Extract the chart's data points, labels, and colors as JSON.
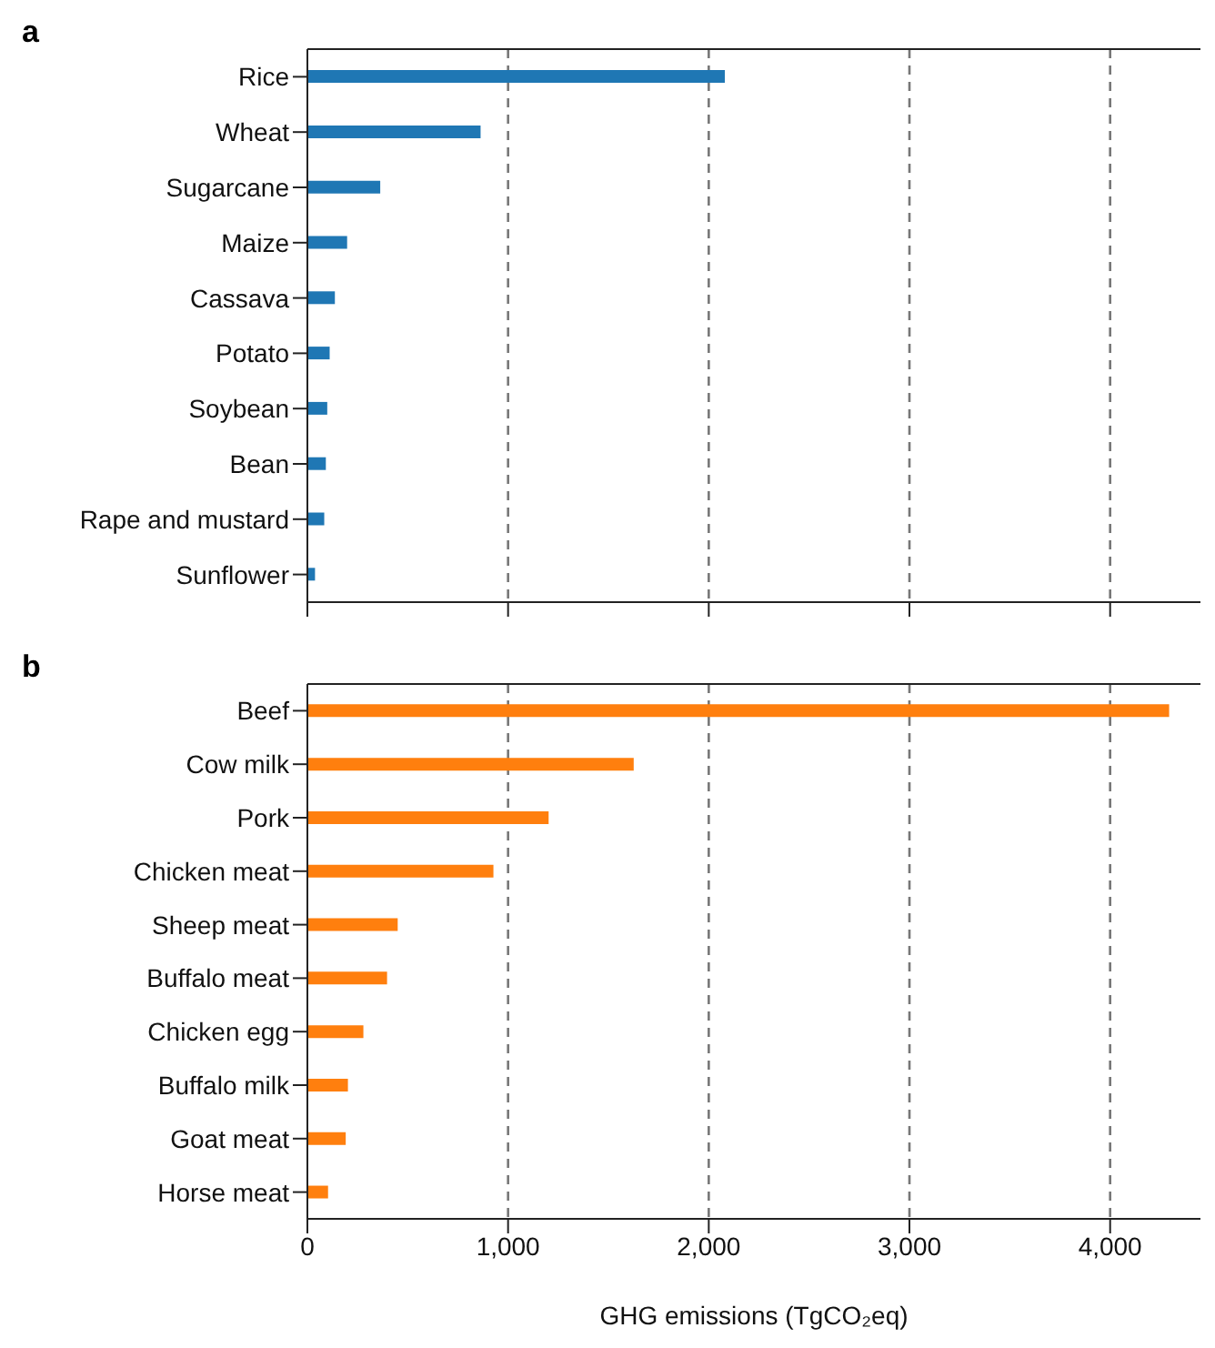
{
  "chart_data": [
    {
      "type": "bar",
      "title": "a",
      "orientation": "horizontal",
      "categories": [
        "Rice",
        "Wheat",
        "Sugarcane",
        "Maize",
        "Cassava",
        "Potato",
        "Soybean",
        "Bean",
        "Rape and mustard",
        "Sunflower"
      ],
      "values": [
        2080,
        863,
        363,
        198,
        137,
        111,
        99,
        92,
        84,
        38
      ],
      "color": "#1f77b4",
      "xlim": [
        0,
        4450
      ],
      "xticks": [
        0,
        1000,
        2000,
        3000,
        4000
      ],
      "grid": "x",
      "tick_labels": "y"
    },
    {
      "type": "bar",
      "title": "b",
      "orientation": "horizontal",
      "categories": [
        "Beef",
        "Cow milk",
        "Pork",
        "Chicken meat",
        "Sheep meat",
        "Buffalo meat",
        "Chicken egg",
        "Buffalo milk",
        "Goat meat",
        "Horse meat"
      ],
      "values": [
        4294,
        1626,
        1202,
        927,
        450,
        397,
        279,
        202,
        191,
        103
      ],
      "color": "#ff7f0e",
      "xlim": [
        0,
        4450
      ],
      "xticks": [
        {
          "value": 0,
          "label": "0"
        },
        {
          "value": 1000,
          "label": "1,000"
        },
        {
          "value": 2000,
          "label": "2,000"
        },
        {
          "value": 3000,
          "label": "3,000"
        },
        {
          "value": 4000,
          "label": "4,000"
        }
      ],
      "grid": "x",
      "xlabel": "GHG emissions (TgCO₂eq)"
    }
  ]
}
